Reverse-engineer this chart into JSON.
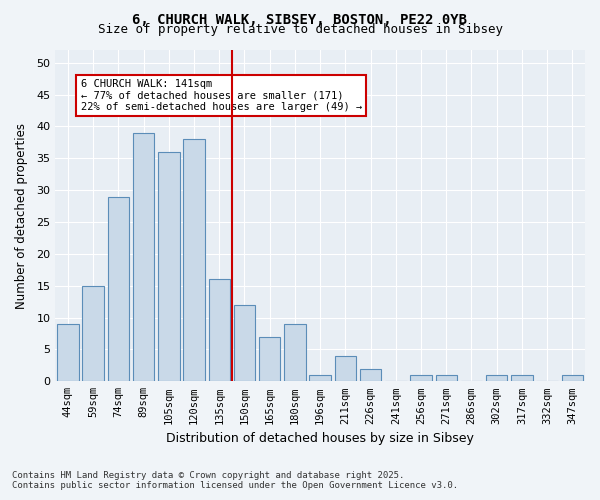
{
  "title1": "6, CHURCH WALK, SIBSEY, BOSTON, PE22 0YB",
  "title2": "Size of property relative to detached houses in Sibsey",
  "xlabel": "Distribution of detached houses by size in Sibsey",
  "ylabel": "Number of detached properties",
  "bar_labels": [
    "44sqm",
    "59sqm",
    "74sqm",
    "89sqm",
    "105sqm",
    "120sqm",
    "135sqm",
    "150sqm",
    "165sqm",
    "180sqm",
    "196sqm",
    "211sqm",
    "226sqm",
    "241sqm",
    "256sqm",
    "271sqm",
    "286sqm",
    "302sqm",
    "317sqm",
    "332sqm",
    "347sqm"
  ],
  "bar_values": [
    9,
    15,
    29,
    39,
    36,
    38,
    16,
    12,
    7,
    9,
    1,
    4,
    2,
    0,
    1,
    1,
    0,
    1,
    1,
    0,
    1
  ],
  "bar_color": "#c9d9e8",
  "bar_edgecolor": "#5b8db8",
  "property_value": 141,
  "property_label": "6 CHURCH WALK: 141sqm",
  "annotation_line1": "← 77% of detached houses are smaller (171)",
  "annotation_line2": "22% of semi-detached houses are larger (49) →",
  "vline_color": "#cc0000",
  "vline_x_index": 6.5,
  "annotation_box_color": "#cc0000",
  "background_color": "#e8eef4",
  "grid_color": "#ffffff",
  "ylim": [
    0,
    52
  ],
  "yticks": [
    0,
    5,
    10,
    15,
    20,
    25,
    30,
    35,
    40,
    45,
    50
  ],
  "footnote": "Contains HM Land Registry data © Crown copyright and database right 2025.\nContains public sector information licensed under the Open Government Licence v3.0."
}
